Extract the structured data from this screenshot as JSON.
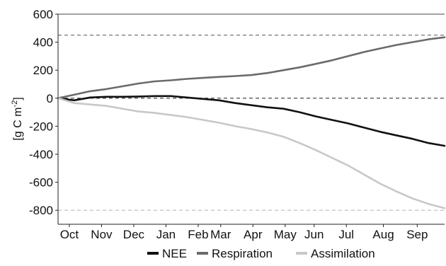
{
  "chart_data": {
    "type": "line",
    "ylabel": "[g C m",
    "ylabel_sup": "-2",
    "ylabel_close": "]",
    "ylim": [
      -900,
      600
    ],
    "yticks": [
      600,
      400,
      200,
      0,
      -200,
      -400,
      -600,
      -800
    ],
    "ytick_labels": [
      "600",
      "400",
      "200",
      "0",
      "-200",
      "-400",
      "-600",
      "-800"
    ],
    "x_domain": [
      0,
      12
    ],
    "xticks": [
      {
        "label": "Oct",
        "x": 0.35
      },
      {
        "label": "Nov",
        "x": 1.35
      },
      {
        "label": "Dec",
        "x": 2.35
      },
      {
        "label": "Jan",
        "x": 3.35
      },
      {
        "label": "Feb",
        "x": 4.35
      },
      {
        "label": "Mar",
        "x": 5.05
      },
      {
        "label": "Apr",
        "x": 6.05
      },
      {
        "label": "May",
        "x": 7.05
      },
      {
        "label": "Jun",
        "x": 7.95
      },
      {
        "label": "Jul",
        "x": 8.95
      },
      {
        "label": "Aug",
        "x": 10.1
      },
      {
        "label": "Sep",
        "x": 11.15
      }
    ],
    "reference_lines": [
      {
        "y": 450,
        "color": "#666666"
      },
      {
        "y": 0,
        "color": "#333333"
      },
      {
        "y": -800,
        "color": "#bbbbbb"
      }
    ],
    "series": [
      {
        "name": "NEE",
        "color": "#111111",
        "x": [
          0,
          0.5,
          1,
          1.5,
          2,
          2.5,
          3,
          3.5,
          4,
          4.5,
          5,
          5.5,
          6,
          6.5,
          7,
          7.5,
          8,
          8.5,
          9,
          9.5,
          10,
          10.5,
          11,
          11.5,
          12
        ],
        "y": [
          0,
          -15,
          5,
          10,
          10,
          12,
          15,
          15,
          5,
          -5,
          -15,
          -35,
          -50,
          -65,
          -75,
          -100,
          -130,
          -155,
          -180,
          -210,
          -240,
          -265,
          -290,
          -320,
          -340
        ]
      },
      {
        "name": "Respiration",
        "color": "#6b6b6b",
        "x": [
          0,
          0.5,
          1,
          1.5,
          2,
          2.5,
          3,
          3.5,
          4,
          4.5,
          5,
          5.5,
          6,
          6.5,
          7,
          7.5,
          8,
          8.5,
          9,
          9.5,
          10,
          10.5,
          11,
          11.5,
          12
        ],
        "y": [
          0,
          25,
          50,
          65,
          85,
          105,
          120,
          128,
          138,
          145,
          152,
          158,
          165,
          180,
          200,
          220,
          245,
          270,
          300,
          330,
          355,
          380,
          400,
          420,
          435
        ]
      },
      {
        "name": "Assimilation",
        "color": "#c8c8c8",
        "x": [
          0,
          0.5,
          1,
          1.5,
          2,
          2.5,
          3,
          3.5,
          4,
          4.5,
          5,
          5.5,
          6,
          6.5,
          7,
          7.5,
          8,
          8.5,
          9,
          9.5,
          10,
          10.5,
          11,
          11.5,
          12
        ],
        "y": [
          0,
          -35,
          -45,
          -55,
          -75,
          -95,
          -105,
          -120,
          -135,
          -155,
          -175,
          -200,
          -220,
          -245,
          -275,
          -320,
          -370,
          -425,
          -480,
          -545,
          -610,
          -665,
          -715,
          -755,
          -785
        ]
      }
    ],
    "legend_position": "bottom",
    "grid": false
  }
}
